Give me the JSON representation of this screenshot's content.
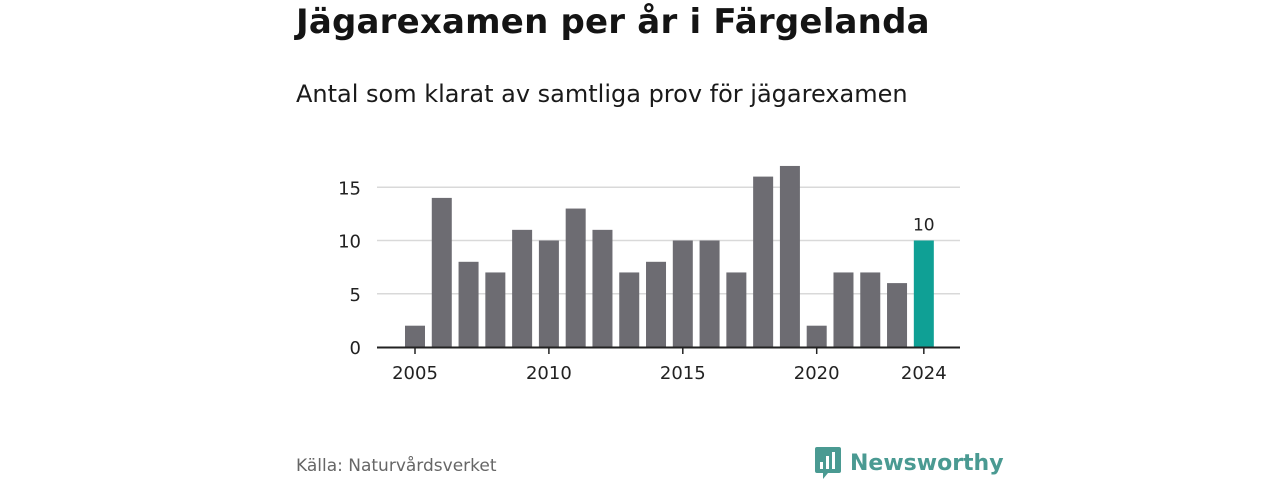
{
  "title": "Jägarexamen per år i Färgelanda",
  "subtitle": "Antal som klarat av samtliga prov för jägarexamen",
  "source": "Källa: Naturvårdsverket",
  "brand": "Newsworthy",
  "colors": {
    "bar": "#6d6c72",
    "highlight": "#0fa095",
    "grid": "#d9d9d9",
    "axis": "#222222",
    "brand": "#4a9a92"
  },
  "icons": {
    "brand_logo": "newsworthy-logo-icon"
  },
  "chart_data": {
    "type": "bar",
    "title": "Jägarexamen per år i Färgelanda",
    "subtitle": "Antal som klarat av samtliga prov för jägarexamen",
    "xlabel": "",
    "ylabel": "",
    "categories": [
      2005,
      2006,
      2007,
      2008,
      2009,
      2010,
      2011,
      2012,
      2013,
      2014,
      2015,
      2016,
      2017,
      2018,
      2019,
      2020,
      2021,
      2022,
      2023,
      2024
    ],
    "values": [
      2,
      14,
      8,
      7,
      11,
      10,
      13,
      11,
      7,
      8,
      10,
      10,
      7,
      16,
      17,
      2,
      7,
      7,
      6,
      10
    ],
    "highlight": {
      "category": 2024,
      "label": "10"
    },
    "xticks": [
      2005,
      2010,
      2015,
      2020,
      2024
    ],
    "yticks": [
      0,
      5,
      10,
      15
    ],
    "ylim": [
      0,
      17
    ],
    "grid": "horizontal",
    "legend": "none"
  }
}
